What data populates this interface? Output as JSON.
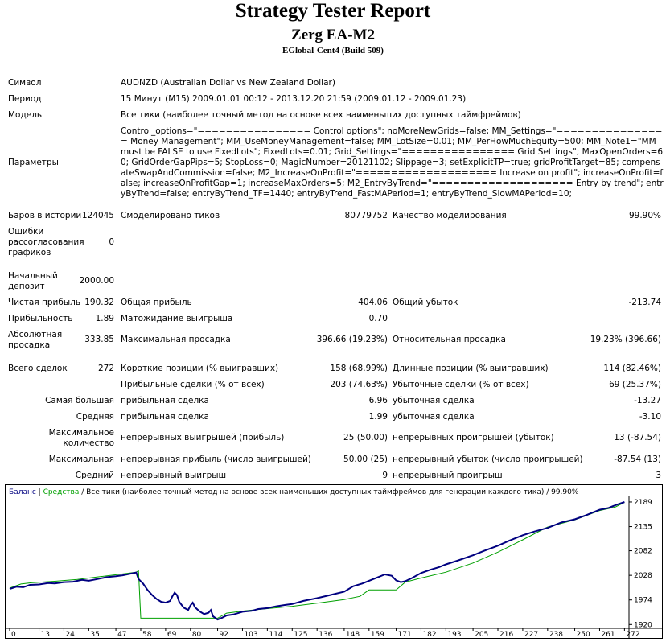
{
  "header": {
    "title": "Strategy Tester Report",
    "ea": "Zerg EA-M2",
    "server": "EGlobal-Cent4 (Build 509)"
  },
  "info": {
    "symbol_label": "Символ",
    "symbol": "AUDNZD (Australian Dollar vs New Zealand Dollar)",
    "period_label": "Период",
    "period": "15 Минут (M15) 2009.01.01 00:12 - 2013.12.20 21:59 (2009.01.12 - 2009.01.23)",
    "model_label": "Модель",
    "model": "Все тики (наиболее точный метод на основе всех наименьших доступных таймфреймов)",
    "params_label": "Параметры",
    "params": "Control_options=\"================ Control options\"; noMoreNewGrids=false; MM_Settings=\"================ Money Management\"; MM_UseMoneyManagement=false; MM_LotSize=0.01; MM_PerHowMuchEquity=500; MM_Note1=\"MM must be FALSE to use FixedLots\"; FixedLots=0.01; Grid_Settings=\"================ Grid Settings\"; MaxOpenOrders=60; GridOrderGapPips=5; StopLoss=0; MagicNumber=20121102; Slippage=3; setExplicitTP=true; gridProfitTarget=85; compensateSwapAndCommission=false; M2_IncreaseOnProfit=\"==================== Increase on profit\"; increaseOnProfit=false; increaseOnProfitGap=1; increaseMaxOrders=5; M2_EntryByTrend=\"==================== Entry by trend\"; entryByTrend=false; entryByTrend_TF=1440; entryByTrend_FastMAPeriod=1; entryByTrend_SlowMAPeriod=10;"
  },
  "stats": {
    "bars_label": "Баров в истории",
    "bars": "124045",
    "ticks_label": "Смоделировано тиков",
    "ticks": "80779752",
    "quality_label": "Качество моделирования",
    "quality": "99.90%",
    "errors_label": "Ошибки рассогласования графиков",
    "errors": "0",
    "deposit_label": "Начальный депозит",
    "deposit": "2000.00",
    "net_label": "Чистая прибыль",
    "net": "190.32",
    "gross_profit_label": "Общая прибыль",
    "gross_profit": "404.06",
    "gross_loss_label": "Общий убыток",
    "gross_loss": "-213.74",
    "pf_label": "Прибыльность",
    "pf": "1.89",
    "expected_label": "Матожидание выигрыша",
    "expected": "0.70",
    "abs_dd_label": "Абсолютная просадка",
    "abs_dd": "333.85",
    "max_dd_label": "Максимальная просадка",
    "max_dd": "396.66 (19.23%)",
    "rel_dd_label": "Относительная просадка",
    "rel_dd": "19.23% (396.66)",
    "trades_label": "Всего сделок",
    "trades": "272",
    "short_label": "Короткие позиции (% выигравших)",
    "short": "158 (68.99%)",
    "long_label": "Длинные позиции (% выигравших)",
    "long": "114 (82.46%)",
    "profit_trades_label": "Прибыльные сделки (% от всех)",
    "profit_trades": "203 (74.63%)",
    "loss_trades_label": "Убыточные сделки (% от всех)",
    "loss_trades": "69 (25.37%)",
    "largest_label": "Самая большая",
    "largest_profit_label": "прибыльная сделка",
    "largest_profit": "6.96",
    "largest_loss_label": "убыточная сделка",
    "largest_loss": "-13.27",
    "average_label": "Средняя",
    "average_profit_label": "прибыльная сделка",
    "average_profit": "1.99",
    "average_loss_label": "убыточная сделка",
    "average_loss": "-3.10",
    "max_count_label": "Максимальное количество",
    "cons_wins_label": "непрерывных выигрышей (прибыль)",
    "cons_wins": "25 (50.00)",
    "cons_losses_label": "непрерывных проигрышей (убыток)",
    "cons_losses": "13 (-87.54)",
    "max_label": "Максимальная",
    "cons_profit_label": "непрерывная прибыль (число выигрышей)",
    "cons_profit": "50.00 (25)",
    "cons_loss_label": "непрерывный убыток (число проигрышей)",
    "cons_loss": "-87.54 (13)",
    "avg_label": "Средний",
    "avg_wins_label": "непрерывный выигрыш",
    "avg_wins": "9",
    "avg_losses_label": "непрерывный проигрыш",
    "avg_losses": "3"
  },
  "chart_data": {
    "type": "line",
    "legend_balance": "Баланс",
    "legend_sep1": " | ",
    "legend_equity": "Средства",
    "legend_rest": " / Все тики (наиболее точный метод на основе всех наименьших доступных таймфреймов для генерации каждого тика) / 99.90%",
    "x_ticks": [
      "0",
      "13",
      "24",
      "35",
      "47",
      "58",
      "69",
      "80",
      "92",
      "103",
      "114",
      "125",
      "136",
      "148",
      "159",
      "171",
      "182",
      "193",
      "205",
      "216",
      "227",
      "238",
      "250",
      "261",
      "272"
    ],
    "y_ticks": [
      "2189",
      "2135",
      "2082",
      "2028",
      "1974",
      "1920"
    ],
    "xlim": [
      0,
      274
    ],
    "ylim": [
      1917,
      2196
    ],
    "balance_color": "#00a000",
    "equity_color": "#000080",
    "balance": [
      [
        0,
        2000
      ],
      [
        5,
        2009
      ],
      [
        10,
        2012
      ],
      [
        20,
        2015
      ],
      [
        30,
        2019
      ],
      [
        40,
        2025
      ],
      [
        50,
        2031
      ],
      [
        56,
        2035
      ],
      [
        57,
        2038
      ],
      [
        58,
        1934
      ],
      [
        92,
        1934
      ],
      [
        96,
        1945
      ],
      [
        104,
        1950
      ],
      [
        114,
        1955
      ],
      [
        125,
        1960
      ],
      [
        136,
        1967
      ],
      [
        148,
        1975
      ],
      [
        155,
        1982
      ],
      [
        159,
        1996
      ],
      [
        171,
        1996
      ],
      [
        175,
        2013
      ],
      [
        182,
        2022
      ],
      [
        193,
        2035
      ],
      [
        205,
        2055
      ],
      [
        216,
        2079
      ],
      [
        227,
        2106
      ],
      [
        238,
        2134
      ],
      [
        250,
        2150
      ],
      [
        261,
        2170
      ],
      [
        268,
        2178
      ],
      [
        272,
        2188
      ]
    ],
    "equity": [
      [
        0,
        1998
      ],
      [
        3,
        2003
      ],
      [
        6,
        2002
      ],
      [
        9,
        2007
      ],
      [
        13,
        2008
      ],
      [
        17,
        2011
      ],
      [
        20,
        2010
      ],
      [
        24,
        2013
      ],
      [
        28,
        2014
      ],
      [
        32,
        2018
      ],
      [
        35,
        2016
      ],
      [
        39,
        2020
      ],
      [
        43,
        2024
      ],
      [
        47,
        2026
      ],
      [
        50,
        2028
      ],
      [
        53,
        2031
      ],
      [
        56,
        2034
      ],
      [
        57,
        2020
      ],
      [
        59,
        2010
      ],
      [
        61,
        1996
      ],
      [
        63,
        1985
      ],
      [
        65,
        1976
      ],
      [
        67,
        1970
      ],
      [
        69,
        1968
      ],
      [
        71,
        1972
      ],
      [
        72,
        1982
      ],
      [
        73,
        1990
      ],
      [
        74,
        1985
      ],
      [
        75,
        1970
      ],
      [
        77,
        1957
      ],
      [
        79,
        1952
      ],
      [
        80,
        1962
      ],
      [
        81,
        1968
      ],
      [
        82,
        1958
      ],
      [
        84,
        1949
      ],
      [
        86,
        1943
      ],
      [
        88,
        1946
      ],
      [
        89,
        1952
      ],
      [
        90,
        1938
      ],
      [
        92,
        1931
      ],
      [
        94,
        1935
      ],
      [
        96,
        1940
      ],
      [
        99,
        1942
      ],
      [
        103,
        1948
      ],
      [
        107,
        1950
      ],
      [
        110,
        1954
      ],
      [
        114,
        1956
      ],
      [
        118,
        1960
      ],
      [
        122,
        1963
      ],
      [
        125,
        1965
      ],
      [
        130,
        1972
      ],
      [
        136,
        1978
      ],
      [
        142,
        1985
      ],
      [
        148,
        1992
      ],
      [
        152,
        2004
      ],
      [
        156,
        2010
      ],
      [
        159,
        2016
      ],
      [
        163,
        2024
      ],
      [
        166,
        2030
      ],
      [
        169,
        2027
      ],
      [
        171,
        2017
      ],
      [
        173,
        2013
      ],
      [
        175,
        2015
      ],
      [
        178,
        2022
      ],
      [
        182,
        2033
      ],
      [
        186,
        2040
      ],
      [
        190,
        2046
      ],
      [
        193,
        2052
      ],
      [
        198,
        2060
      ],
      [
        205,
        2072
      ],
      [
        210,
        2082
      ],
      [
        216,
        2093
      ],
      [
        221,
        2104
      ],
      [
        227,
        2116
      ],
      [
        232,
        2124
      ],
      [
        238,
        2132
      ],
      [
        244,
        2144
      ],
      [
        250,
        2151
      ],
      [
        255,
        2160
      ],
      [
        261,
        2172
      ],
      [
        265,
        2176
      ],
      [
        268,
        2182
      ],
      [
        272,
        2189
      ]
    ]
  }
}
